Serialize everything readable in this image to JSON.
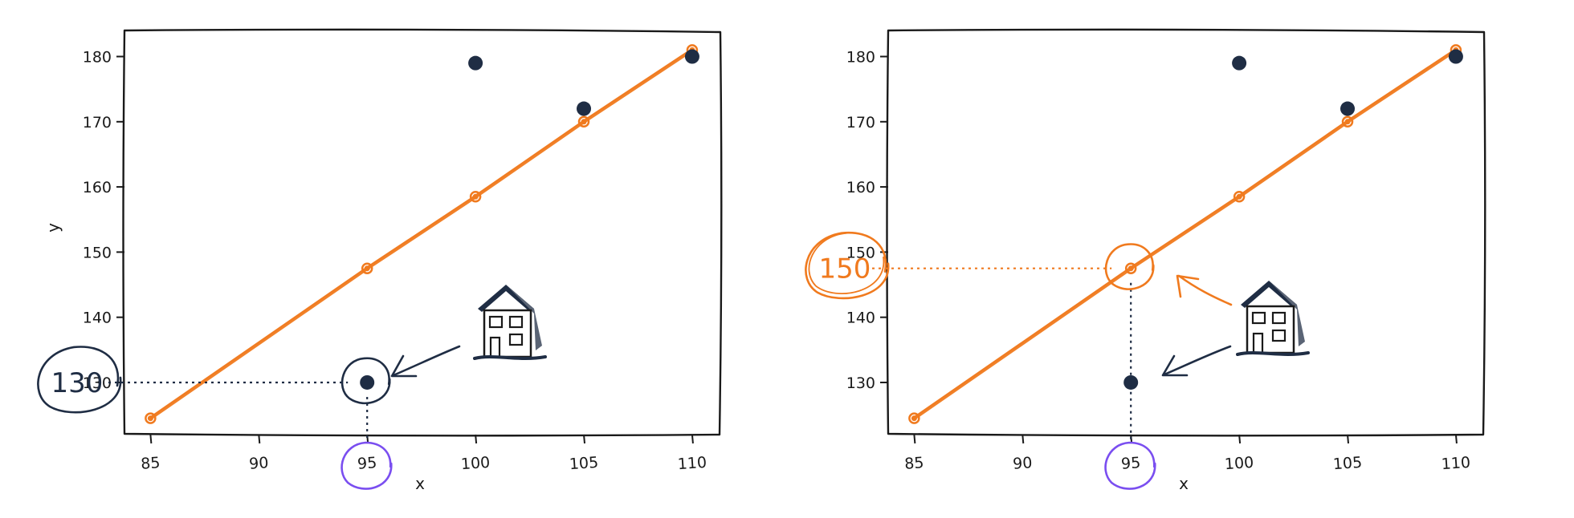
{
  "chart_data": [
    {
      "type": "scatter",
      "title": "",
      "xlabel": "x",
      "ylabel": "y",
      "xlim": [
        83.8,
        111.3
      ],
      "ylim": [
        122,
        184
      ],
      "xticks": [
        85,
        90,
        95,
        100,
        105,
        110
      ],
      "yticks": [
        130,
        140,
        150,
        160,
        170,
        180
      ],
      "series": [
        {
          "type": "scatter",
          "x": [
            95,
            100,
            105,
            110
          ],
          "y": [
            130,
            179,
            172,
            180
          ]
        },
        {
          "type": "line",
          "x": [
            85,
            95,
            100,
            105,
            110
          ],
          "y": [
            124.5,
            147.5,
            158.5,
            170,
            181
          ]
        }
      ],
      "highlight": {
        "x": 95,
        "y": 130,
        "label": "130",
        "x_label": "95"
      },
      "colors": {
        "points": "#1f2d44",
        "fit": "#f07a1e",
        "x_circle": "#7a4ef0"
      },
      "icons": [
        "house-icon",
        "arrow-icon"
      ]
    },
    {
      "type": "scatter",
      "title": "",
      "xlabel": "x",
      "ylabel": "",
      "xlim": [
        83.8,
        111.3
      ],
      "ylim": [
        122,
        184
      ],
      "xticks": [
        85,
        90,
        95,
        100,
        105,
        110
      ],
      "yticks": [
        130,
        140,
        150,
        160,
        170,
        180
      ],
      "series": [
        {
          "type": "scatter",
          "x": [
            95,
            100,
            105,
            110
          ],
          "y": [
            130,
            179,
            172,
            180
          ]
        },
        {
          "type": "line",
          "x": [
            85,
            95,
            100,
            105,
            110
          ],
          "y": [
            124.5,
            147.5,
            158.5,
            170,
            181
          ]
        }
      ],
      "highlight": {
        "x": 95,
        "y": 147.5,
        "label": "150",
        "x_label": "95"
      },
      "colors": {
        "points": "#1f2d44",
        "fit": "#f07a1e",
        "x_circle": "#7a4ef0"
      },
      "icons": [
        "house-icon",
        "arrow-icon"
      ]
    }
  ]
}
